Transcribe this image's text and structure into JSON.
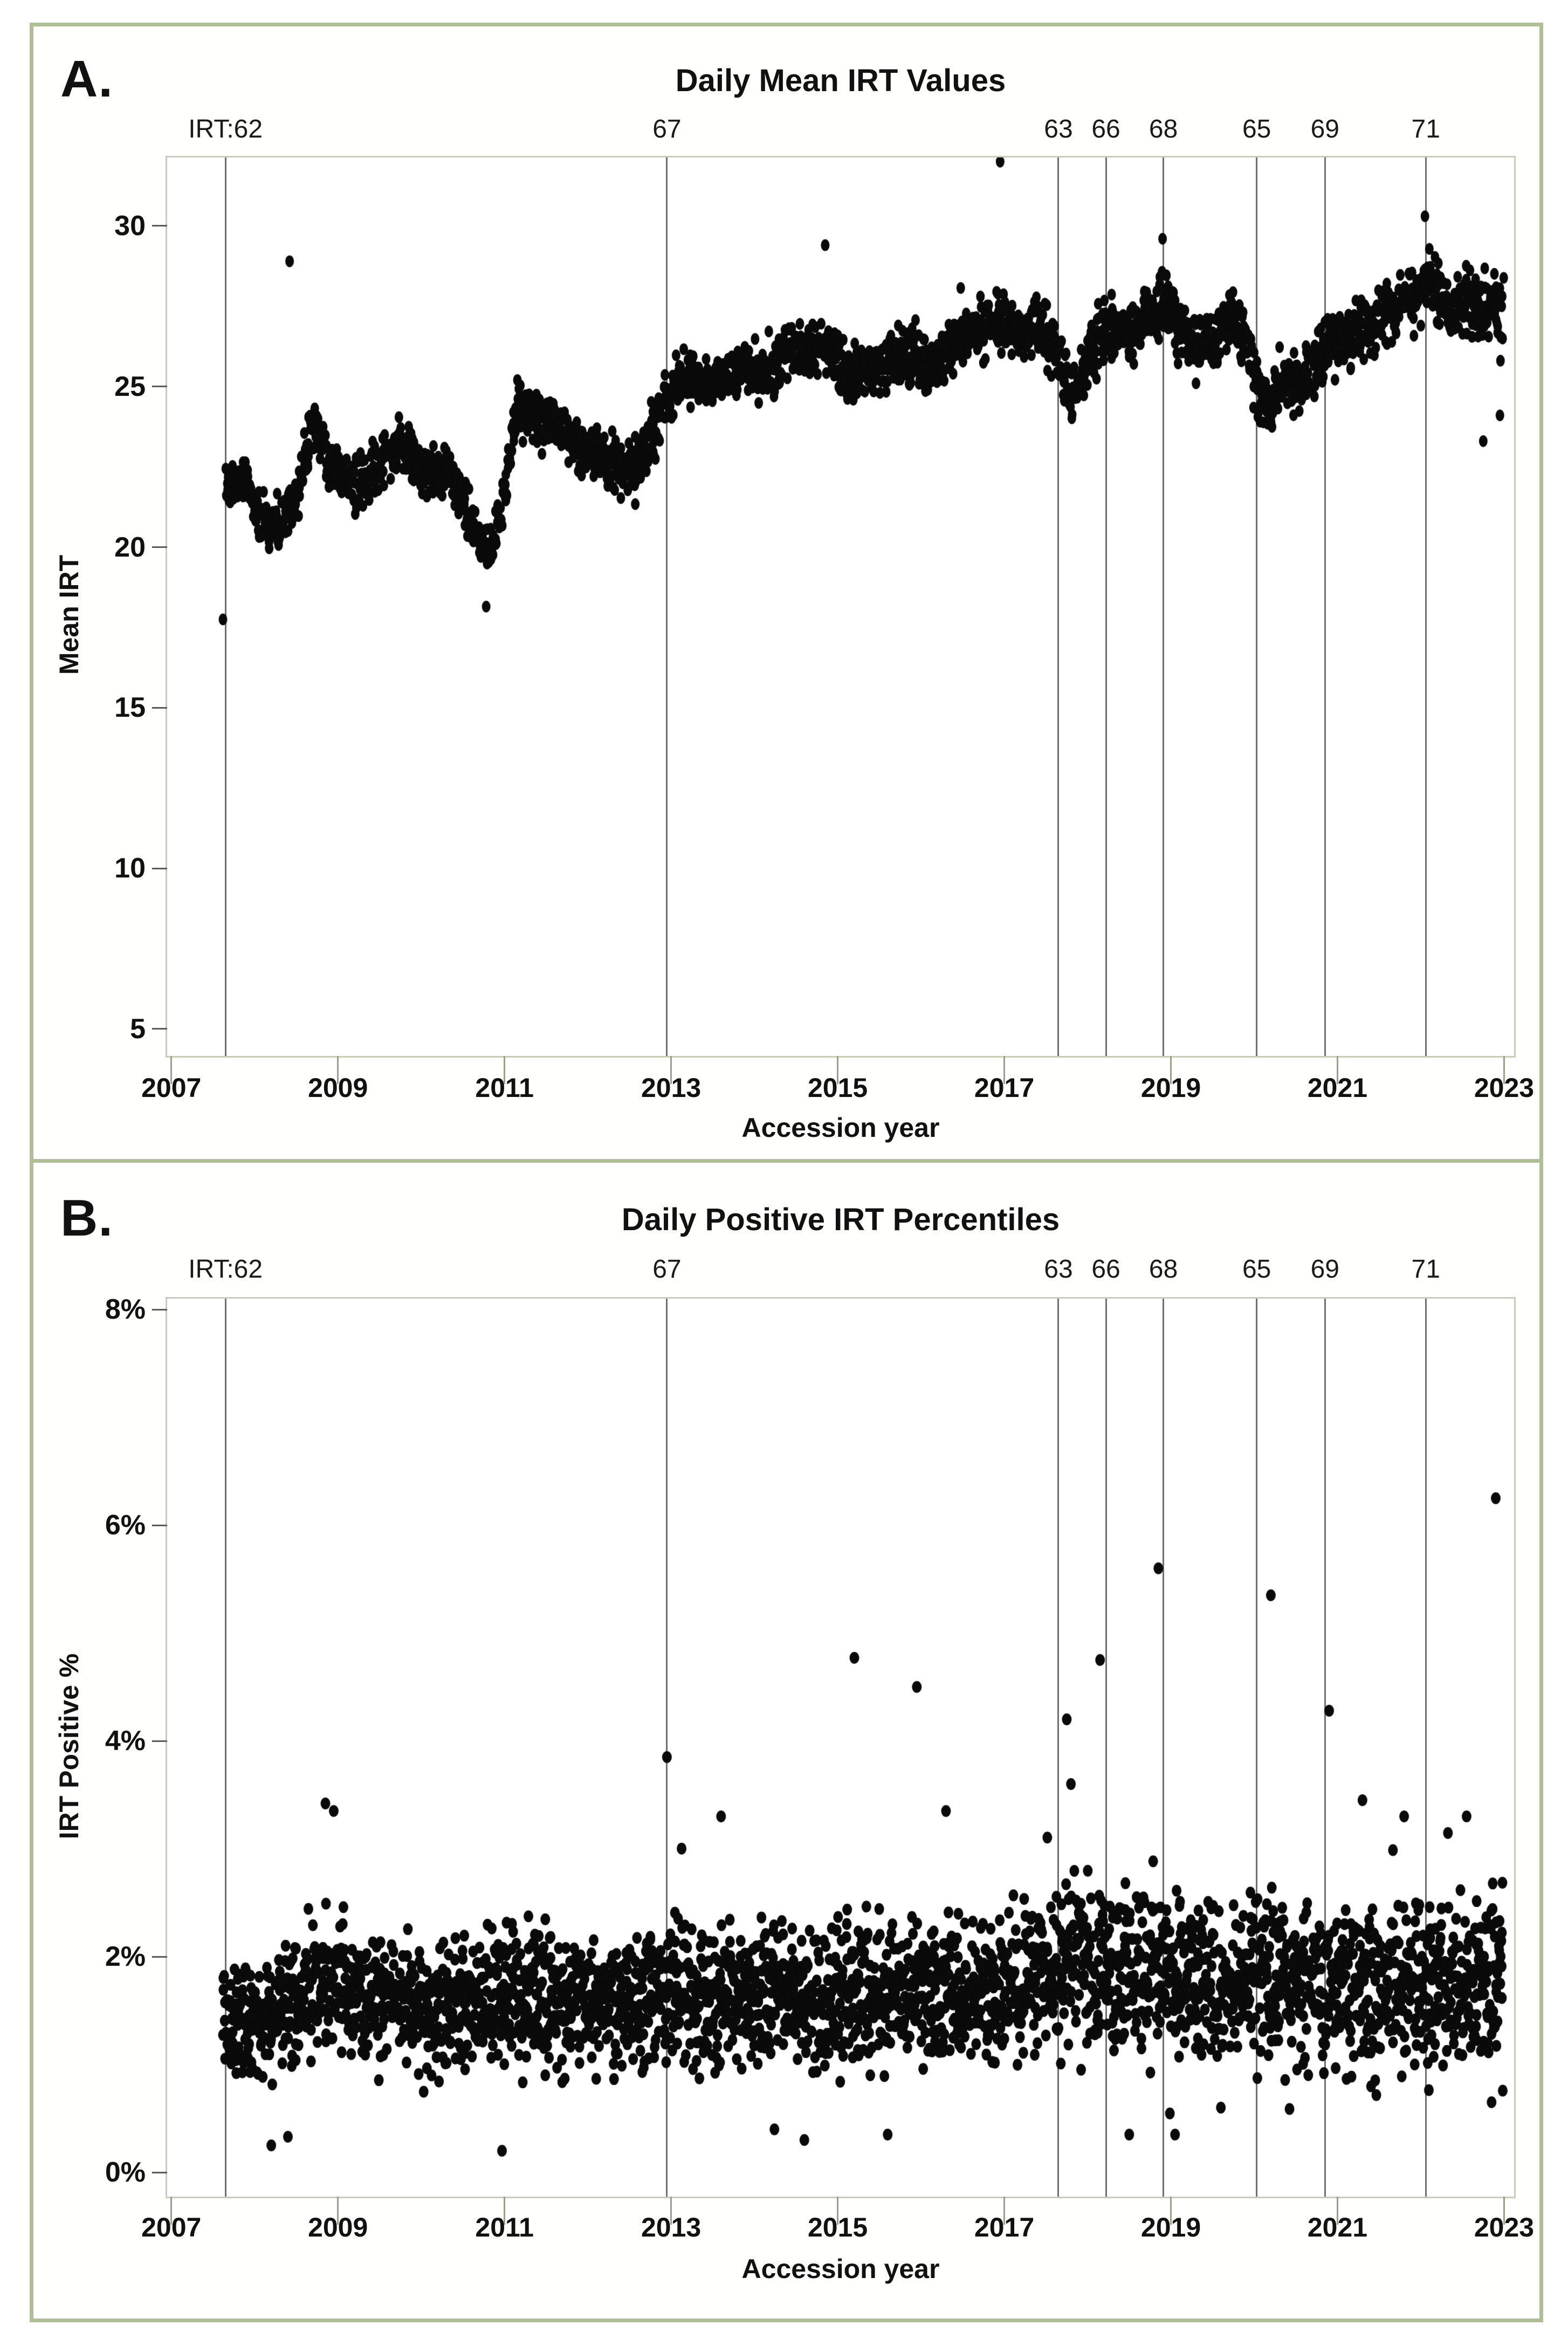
{
  "figure": {
    "frame_color": "#aebf95",
    "background": "#ffffff",
    "point_color": "#0a0a0a",
    "reference_line_color": "#6f6f6f",
    "panel_a": {
      "letter": "A.",
      "title": "Daily Mean IRT Values",
      "xlabel": "Accession year",
      "ylabel": "Mean IRT"
    },
    "panel_b": {
      "letter": "B.",
      "title": "Daily Positive IRT Percentiles",
      "xlabel": "Accession year",
      "ylabel": "IRT Positive %"
    }
  },
  "chart_data": [
    {
      "panel": "A",
      "type": "scatter",
      "title": "Daily Mean IRT Values",
      "xlabel": "Accession year",
      "ylabel": "Mean IRT",
      "xlim": [
        2006.95,
        2023.12
      ],
      "ylim": [
        4.16,
        32.13
      ],
      "xticks": [
        2007,
        2009,
        2011,
        2013,
        2015,
        2017,
        2019,
        2021,
        2023
      ],
      "yticks": [
        5,
        10,
        15,
        20,
        25,
        30
      ],
      "ytick_labels": [
        "5",
        "10",
        "15",
        "20",
        "25",
        "30"
      ],
      "grid": false,
      "legend": false,
      "marker": {
        "rx": 8,
        "ry": 11,
        "color": "#0a0a0a"
      },
      "reference_lines": [
        {
          "label": "IRT:62",
          "year": 2007.65
        },
        {
          "label": "67",
          "year": 2012.95
        },
        {
          "label": "63",
          "year": 2017.65
        },
        {
          "label": "66",
          "year": 2018.22
        },
        {
          "label": "68",
          "year": 2018.91
        },
        {
          "label": "65",
          "year": 2020.03
        },
        {
          "label": "69",
          "year": 2020.85
        },
        {
          "label": "71",
          "year": 2022.06
        }
      ],
      "n_points": 2700,
      "x_start": 2007.66,
      "x_end": 2022.99,
      "seed": 1234,
      "trend_mean_spread": [
        [
          2007.66,
          21.7,
          0.9
        ],
        [
          2007.85,
          22.2,
          1.0
        ],
        [
          2008.05,
          21.0,
          0.9
        ],
        [
          2008.25,
          20.7,
          0.9
        ],
        [
          2008.5,
          21.6,
          1.0
        ],
        [
          2008.7,
          23.7,
          1.1
        ],
        [
          2008.9,
          22.7,
          1.0
        ],
        [
          2009.1,
          21.9,
          0.9
        ],
        [
          2009.35,
          22.0,
          1.0
        ],
        [
          2009.6,
          22.9,
          1.1
        ],
        [
          2009.8,
          23.1,
          1.1
        ],
        [
          2010.0,
          22.3,
          1.0
        ],
        [
          2010.3,
          22.4,
          1.0
        ],
        [
          2010.55,
          21.2,
          1.0
        ],
        [
          2010.8,
          19.8,
          1.0
        ],
        [
          2010.95,
          20.8,
          1.0
        ],
        [
          2011.15,
          24.3,
          1.1
        ],
        [
          2011.4,
          23.9,
          1.1
        ],
        [
          2011.6,
          24.0,
          1.1
        ],
        [
          2011.85,
          23.0,
          1.0
        ],
        [
          2012.1,
          23.0,
          1.0
        ],
        [
          2012.4,
          22.4,
          1.0
        ],
        [
          2012.65,
          22.7,
          1.1
        ],
        [
          2012.9,
          24.3,
          1.1
        ],
        [
          2013.15,
          25.3,
          0.9
        ],
        [
          2013.4,
          25.0,
          1.0
        ],
        [
          2013.65,
          25.4,
          1.0
        ],
        [
          2013.9,
          25.6,
          1.1
        ],
        [
          2014.15,
          25.2,
          1.0
        ],
        [
          2014.4,
          26.0,
          1.1
        ],
        [
          2014.65,
          26.3,
          1.1
        ],
        [
          2014.9,
          26.3,
          1.2
        ],
        [
          2015.15,
          25.3,
          1.0
        ],
        [
          2015.4,
          25.5,
          1.0
        ],
        [
          2015.65,
          25.9,
          1.1
        ],
        [
          2015.9,
          26.1,
          1.1
        ],
        [
          2016.15,
          25.7,
          1.0
        ],
        [
          2016.4,
          26.3,
          1.1
        ],
        [
          2016.65,
          26.7,
          1.1
        ],
        [
          2016.9,
          27.2,
          1.3
        ],
        [
          2017.15,
          26.6,
          1.2
        ],
        [
          2017.4,
          27.0,
          1.2
        ],
        [
          2017.6,
          26.2,
          1.2
        ],
        [
          2017.8,
          24.6,
          1.2
        ],
        [
          2018.0,
          25.9,
          1.2
        ],
        [
          2018.25,
          26.9,
          1.3
        ],
        [
          2018.5,
          26.6,
          1.2
        ],
        [
          2018.75,
          27.3,
          1.2
        ],
        [
          2019.0,
          27.4,
          1.3
        ],
        [
          2019.25,
          26.2,
          1.2
        ],
        [
          2019.5,
          26.4,
          1.1
        ],
        [
          2019.75,
          27.3,
          1.2
        ],
        [
          2019.95,
          26.0,
          1.3
        ],
        [
          2020.1,
          24.3,
          1.1
        ],
        [
          2020.35,
          24.9,
          1.0
        ],
        [
          2020.6,
          25.3,
          1.1
        ],
        [
          2020.9,
          26.3,
          1.2
        ],
        [
          2021.15,
          26.4,
          1.1
        ],
        [
          2021.4,
          27.0,
          1.2
        ],
        [
          2021.65,
          27.5,
          1.2
        ],
        [
          2021.9,
          27.8,
          1.2
        ],
        [
          2022.1,
          28.3,
          1.3
        ],
        [
          2022.35,
          27.3,
          1.2
        ],
        [
          2022.6,
          27.7,
          1.2
        ],
        [
          2022.85,
          27.6,
          1.5
        ],
        [
          2022.99,
          26.9,
          1.8
        ]
      ],
      "outliers": [
        [
          2007.62,
          17.75
        ],
        [
          2008.42,
          28.9
        ],
        [
          2010.78,
          18.15
        ],
        [
          2014.85,
          29.4
        ],
        [
          2016.95,
          32.0
        ],
        [
          2018.9,
          29.6
        ],
        [
          2022.05,
          30.3
        ],
        [
          2022.75,
          23.3
        ],
        [
          2022.95,
          24.1
        ]
      ]
    },
    {
      "panel": "B",
      "type": "scatter",
      "title": "Daily Positive IRT Percentiles",
      "xlabel": "Accession year",
      "ylabel": "IRT Positive %",
      "xlim": [
        2006.95,
        2023.12
      ],
      "ylim": [
        -0.225,
        8.1
      ],
      "xticks": [
        2007,
        2009,
        2011,
        2013,
        2015,
        2017,
        2019,
        2021,
        2023
      ],
      "yticks": [
        0,
        2,
        4,
        6,
        8
      ],
      "ytick_labels": [
        "0%",
        "2%",
        "4%",
        "6%",
        "8%"
      ],
      "grid": false,
      "legend": false,
      "marker": {
        "rx": 9,
        "ry": 11,
        "color": "#0a0a0a"
      },
      "reference_lines": [
        {
          "label": "IRT:62",
          "year": 2007.65
        },
        {
          "label": "67",
          "year": 2012.95
        },
        {
          "label": "63",
          "year": 2017.65
        },
        {
          "label": "66",
          "year": 2018.22
        },
        {
          "label": "68",
          "year": 2018.91
        },
        {
          "label": "65",
          "year": 2020.03
        },
        {
          "label": "69",
          "year": 2020.85
        },
        {
          "label": "71",
          "year": 2022.06
        }
      ],
      "n_points": 3000,
      "x_start": 2007.62,
      "x_end": 2022.99,
      "seed": 5678,
      "trend_mean_spread": [
        [
          2007.62,
          1.45,
          0.6
        ],
        [
          2008.0,
          1.35,
          0.6
        ],
        [
          2008.5,
          1.55,
          0.7
        ],
        [
          2008.95,
          1.8,
          0.85
        ],
        [
          2009.3,
          1.6,
          0.75
        ],
        [
          2009.7,
          1.55,
          0.7
        ],
        [
          2010.1,
          1.5,
          0.7
        ],
        [
          2010.5,
          1.55,
          0.7
        ],
        [
          2010.9,
          1.6,
          0.75
        ],
        [
          2011.3,
          1.65,
          0.8
        ],
        [
          2011.7,
          1.6,
          0.75
        ],
        [
          2012.1,
          1.55,
          0.75
        ],
        [
          2012.5,
          1.5,
          0.75
        ],
        [
          2012.95,
          1.75,
          0.85
        ],
        [
          2013.4,
          1.6,
          0.8
        ],
        [
          2013.8,
          1.65,
          0.8
        ],
        [
          2014.2,
          1.65,
          0.8
        ],
        [
          2014.6,
          1.6,
          0.8
        ],
        [
          2015.0,
          1.7,
          0.85
        ],
        [
          2015.4,
          1.65,
          0.8
        ],
        [
          2015.8,
          1.7,
          0.85
        ],
        [
          2016.2,
          1.7,
          0.85
        ],
        [
          2016.6,
          1.7,
          0.85
        ],
        [
          2017.0,
          1.75,
          0.9
        ],
        [
          2017.4,
          1.8,
          0.9
        ],
        [
          2017.8,
          2.0,
          1.05
        ],
        [
          2018.2,
          1.9,
          1.0
        ],
        [
          2018.6,
          1.85,
          0.95
        ],
        [
          2019.0,
          1.85,
          0.95
        ],
        [
          2019.4,
          1.75,
          0.9
        ],
        [
          2019.8,
          1.8,
          0.9
        ],
        [
          2020.2,
          1.8,
          0.95
        ],
        [
          2020.6,
          1.7,
          0.9
        ],
        [
          2021.0,
          1.75,
          0.9
        ],
        [
          2021.4,
          1.7,
          0.9
        ],
        [
          2021.8,
          1.7,
          0.9
        ],
        [
          2022.2,
          1.75,
          0.9
        ],
        [
          2022.6,
          1.7,
          0.95
        ],
        [
          2022.99,
          1.8,
          1.0
        ]
      ],
      "outliers": [
        [
          2008.2,
          0.25
        ],
        [
          2008.4,
          0.33
        ],
        [
          2008.85,
          3.42
        ],
        [
          2008.95,
          3.35
        ],
        [
          2010.97,
          0.2
        ],
        [
          2012.95,
          3.85
        ],
        [
          2013.6,
          3.3
        ],
        [
          2014.6,
          0.3
        ],
        [
          2015.2,
          4.77
        ],
        [
          2015.6,
          0.35
        ],
        [
          2015.95,
          4.5
        ],
        [
          2016.3,
          3.35
        ],
        [
          2017.75,
          4.2
        ],
        [
          2017.8,
          3.6
        ],
        [
          2018.15,
          4.75
        ],
        [
          2018.5,
          0.35
        ],
        [
          2018.85,
          5.6
        ],
        [
          2019.05,
          0.35
        ],
        [
          2019.6,
          0.6
        ],
        [
          2020.2,
          5.35
        ],
        [
          2020.9,
          4.28
        ],
        [
          2021.3,
          3.45
        ],
        [
          2021.8,
          3.3
        ],
        [
          2022.55,
          3.3
        ],
        [
          2022.85,
          0.65
        ],
        [
          2022.9,
          6.25
        ]
      ]
    }
  ]
}
